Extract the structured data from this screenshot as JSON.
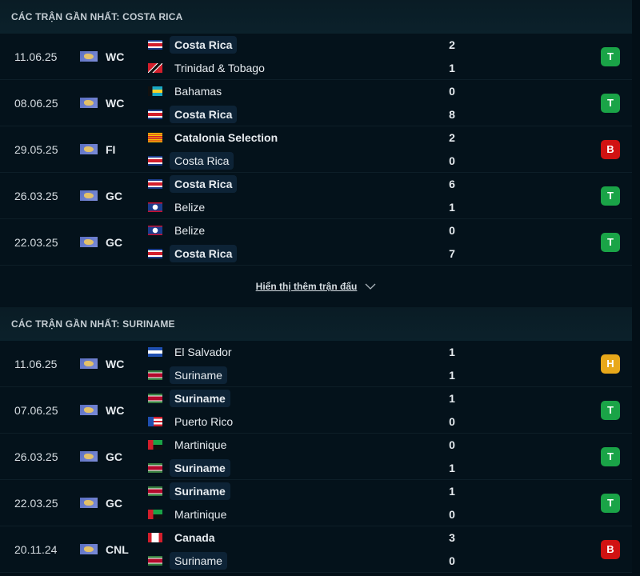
{
  "colors": {
    "win": "#1aa447",
    "loss": "#d11212",
    "draw": "#e8a81a"
  },
  "sections": [
    {
      "title": "CÁC TRẬN GẦN NHẤT: COSTA RICA",
      "matches": [
        {
          "date": "11.06.25",
          "comp": "WC",
          "home": {
            "name": "Costa Rica",
            "flag": "costa-rica",
            "bold": true,
            "hl": true
          },
          "away": {
            "name": "Trinidad & Tobago",
            "flag": "trinidad",
            "bold": false,
            "hl": false
          },
          "hs": "2",
          "as": "1",
          "result": "T",
          "rtype": "win"
        },
        {
          "date": "08.06.25",
          "comp": "WC",
          "home": {
            "name": "Bahamas",
            "flag": "bahamas",
            "bold": false,
            "hl": false
          },
          "away": {
            "name": "Costa Rica",
            "flag": "costa-rica",
            "bold": true,
            "hl": true
          },
          "hs": "0",
          "as": "8",
          "result": "T",
          "rtype": "win"
        },
        {
          "date": "29.05.25",
          "comp": "FI",
          "home": {
            "name": "Catalonia Selection",
            "flag": "catalonia",
            "bold": true,
            "hl": false
          },
          "away": {
            "name": "Costa Rica",
            "flag": "costa-rica",
            "bold": false,
            "hl": true
          },
          "hs": "2",
          "as": "0",
          "result": "B",
          "rtype": "loss"
        },
        {
          "date": "26.03.25",
          "comp": "GC",
          "home": {
            "name": "Costa Rica",
            "flag": "costa-rica",
            "bold": true,
            "hl": true
          },
          "away": {
            "name": "Belize",
            "flag": "belize",
            "bold": false,
            "hl": false
          },
          "hs": "6",
          "as": "1",
          "result": "T",
          "rtype": "win"
        },
        {
          "date": "22.03.25",
          "comp": "GC",
          "home": {
            "name": "Belize",
            "flag": "belize",
            "bold": false,
            "hl": false
          },
          "away": {
            "name": "Costa Rica",
            "flag": "costa-rica",
            "bold": true,
            "hl": true
          },
          "hs": "0",
          "as": "7",
          "result": "T",
          "rtype": "win"
        }
      ],
      "more": "Hiển thị thêm trận đấu"
    },
    {
      "title": "CÁC TRẬN GẦN NHẤT: SURINAME",
      "matches": [
        {
          "date": "11.06.25",
          "comp": "WC",
          "home": {
            "name": "El Salvador",
            "flag": "el-salvador",
            "bold": false,
            "hl": false
          },
          "away": {
            "name": "Suriname",
            "flag": "suriname",
            "bold": false,
            "hl": true
          },
          "hs": "1",
          "as": "1",
          "result": "H",
          "rtype": "draw"
        },
        {
          "date": "07.06.25",
          "comp": "WC",
          "home": {
            "name": "Suriname",
            "flag": "suriname",
            "bold": true,
            "hl": true
          },
          "away": {
            "name": "Puerto Rico",
            "flag": "puerto-rico",
            "bold": false,
            "hl": false
          },
          "hs": "1",
          "as": "0",
          "result": "T",
          "rtype": "win"
        },
        {
          "date": "26.03.25",
          "comp": "GC",
          "home": {
            "name": "Martinique",
            "flag": "martinique",
            "bold": false,
            "hl": false
          },
          "away": {
            "name": "Suriname",
            "flag": "suriname",
            "bold": true,
            "hl": true
          },
          "hs": "0",
          "as": "1",
          "result": "T",
          "rtype": "win"
        },
        {
          "date": "22.03.25",
          "comp": "GC",
          "home": {
            "name": "Suriname",
            "flag": "suriname",
            "bold": true,
            "hl": true
          },
          "away": {
            "name": "Martinique",
            "flag": "martinique",
            "bold": false,
            "hl": false
          },
          "hs": "1",
          "as": "0",
          "result": "T",
          "rtype": "win"
        },
        {
          "date": "20.11.24",
          "comp": "CNL",
          "home": {
            "name": "Canada",
            "flag": "canada",
            "bold": true,
            "hl": false
          },
          "away": {
            "name": "Suriname",
            "flag": "suriname",
            "bold": false,
            "hl": true
          },
          "hs": "3",
          "as": "0",
          "result": "B",
          "rtype": "loss"
        }
      ]
    }
  ]
}
